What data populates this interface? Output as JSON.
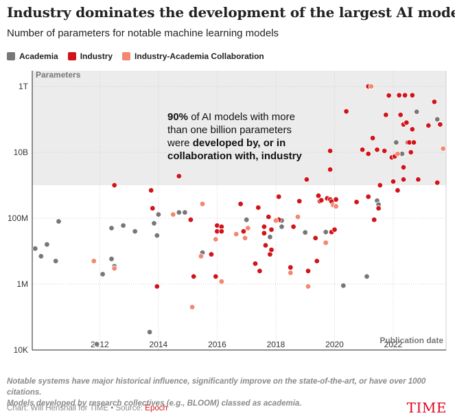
{
  "chart_data": {
    "type": "scatter",
    "title": "Industry dominates the development of the largest AI models",
    "subtitle": "Number of parameters for notable machine learning models",
    "ylabel": "Parameters",
    "xlabel": "Publication date",
    "yscale": "log",
    "ylim": [
      10000,
      3000000000000
    ],
    "xlim": [
      2009.7,
      2023.8
    ],
    "x_ticks": [
      2012,
      2014,
      2016,
      2018,
      2020,
      2022
    ],
    "y_ticks": [
      {
        "value": 10000,
        "label": "10K"
      },
      {
        "value": 1000000,
        "label": "1M"
      },
      {
        "value": 100000000,
        "label": "100M"
      },
      {
        "value": 10000000000,
        "label": "10B"
      },
      {
        "value": 1000000000000,
        "label": "1T"
      }
    ],
    "shaded_region": {
      "y_from": 1000000000,
      "y_to": 3000000000000,
      "color": "#ececec"
    },
    "annotation": {
      "line1_bold": "90%",
      "line1_rest": " of AI models with more",
      "line2": "than one billion parameters",
      "line3_normal": "were ",
      "line3_bold": "developed by, or in",
      "line4_bold": "collaboration with, industry"
    },
    "legend": [
      {
        "name": "Academia",
        "color": "#777777"
      },
      {
        "name": "Industry",
        "color": "#d1141a"
      },
      {
        "name": "Industry-Academia Collaboration",
        "color": "#f4876f"
      }
    ],
    "series": [
      {
        "name": "Academia",
        "color": "#777777",
        "points": [
          [
            2009.8,
            12000000
          ],
          [
            2010.0,
            7000000
          ],
          [
            2010.2,
            16000000
          ],
          [
            2010.5,
            5000000
          ],
          [
            2010.6,
            80000000
          ],
          [
            2011.9,
            15000
          ],
          [
            2012.1,
            2000000
          ],
          [
            2012.4,
            5800000
          ],
          [
            2012.4,
            50000000
          ],
          [
            2012.5,
            3500000
          ],
          [
            2012.8,
            60000000
          ],
          [
            2013.2,
            40000000
          ],
          [
            2013.7,
            35000
          ],
          [
            2013.85,
            70000000
          ],
          [
            2013.95,
            30000000
          ],
          [
            2014.0,
            130000000
          ],
          [
            2014.7,
            150000000
          ],
          [
            2014.9,
            150000000
          ],
          [
            2015.5,
            9000000
          ],
          [
            2017.0,
            90000000
          ],
          [
            2017.8,
            27000000
          ],
          [
            2018.2,
            85000000
          ],
          [
            2018.2,
            55000000
          ],
          [
            2019.0,
            37000000
          ],
          [
            2019.7,
            38000000
          ],
          [
            2020.3,
            900000
          ],
          [
            2021.1,
            1700000
          ],
          [
            2021.45,
            340000000
          ],
          [
            2021.5,
            260000000
          ],
          [
            2022.1,
            20000000000
          ],
          [
            2022.3,
            9000000000
          ],
          [
            2022.8,
            170000000000
          ],
          [
            2023.5,
            100000000000
          ]
        ]
      },
      {
        "name": "Industry",
        "color": "#d1141a",
        "points": [
          [
            2012.5,
            1000000000
          ],
          [
            2013.75,
            700000000
          ],
          [
            2013.8,
            200000000
          ],
          [
            2013.95,
            850000
          ],
          [
            2014.7,
            1900000000
          ],
          [
            2015.1,
            90000000
          ],
          [
            2015.2,
            1700000
          ],
          [
            2015.8,
            8000000
          ],
          [
            2015.95,
            1700000
          ],
          [
            2016.0,
            60000000
          ],
          [
            2016.0,
            40000000
          ],
          [
            2016.15,
            55000000
          ],
          [
            2016.15,
            40000000
          ],
          [
            2016.8,
            270000000
          ],
          [
            2016.9,
            40000000
          ],
          [
            2017.3,
            4200000
          ],
          [
            2017.4,
            210000000
          ],
          [
            2017.45,
            2500000
          ],
          [
            2017.6,
            55000000
          ],
          [
            2017.6,
            35000000
          ],
          [
            2017.65,
            15000000
          ],
          [
            2017.75,
            110000000
          ],
          [
            2017.8,
            8000000
          ],
          [
            2017.85,
            45000000
          ],
          [
            2017.85,
            11000000
          ],
          [
            2018.1,
            90000000
          ],
          [
            2018.1,
            450000000
          ],
          [
            2018.5,
            3200000
          ],
          [
            2018.6,
            55000000
          ],
          [
            2018.8,
            330000000
          ],
          [
            2019.05,
            1500000000
          ],
          [
            2019.1,
            2500000
          ],
          [
            2019.35,
            25000000
          ],
          [
            2019.4,
            5000000
          ],
          [
            2019.45,
            480000000
          ],
          [
            2019.5,
            330000000
          ],
          [
            2019.55,
            350000000
          ],
          [
            2019.75,
            400000000
          ],
          [
            2019.85,
            11000000000
          ],
          [
            2019.85,
            3000000000
          ],
          [
            2019.85,
            370000000
          ],
          [
            2019.9,
            320000000
          ],
          [
            2019.9,
            38000000
          ],
          [
            2020.0,
            45000000
          ],
          [
            2020.05,
            370000000
          ],
          [
            2020.4,
            175000000000
          ],
          [
            2020.75,
            310000000
          ],
          [
            2020.95,
            12000000000
          ],
          [
            2021.15,
            1000000000000
          ],
          [
            2021.15,
            450000000
          ],
          [
            2021.15,
            9000000000
          ],
          [
            2021.3,
            27000000000
          ],
          [
            2021.35,
            90000000
          ],
          [
            2021.45,
            12000000000
          ],
          [
            2021.5,
            200000000
          ],
          [
            2021.55,
            1000000000
          ],
          [
            2021.7,
            11000000000
          ],
          [
            2021.75,
            137000000000
          ],
          [
            2021.85,
            530000000000
          ],
          [
            2021.95,
            7000000000
          ],
          [
            2022.0,
            1300000000
          ],
          [
            2022.05,
            7500000000
          ],
          [
            2022.15,
            700000000
          ],
          [
            2022.2,
            540000000000
          ],
          [
            2022.25,
            137000000000
          ],
          [
            2022.35,
            3500000000
          ],
          [
            2022.35,
            1500000000
          ],
          [
            2022.35,
            70000000000
          ],
          [
            2022.4,
            540000000000
          ],
          [
            2022.45,
            80000000000
          ],
          [
            2022.5,
            20000000000
          ],
          [
            2022.55,
            20000000000
          ],
          [
            2022.6,
            10000000000
          ],
          [
            2022.65,
            540000000000
          ],
          [
            2022.65,
            50000000000
          ],
          [
            2022.7,
            20000000000
          ],
          [
            2022.85,
            1500000000
          ],
          [
            2023.2,
            65000000000
          ],
          [
            2023.4,
            340000000000
          ],
          [
            2023.5,
            1200000000
          ],
          [
            2023.6,
            70000000000
          ]
        ]
      },
      {
        "name": "Industry-Academia Collaboration",
        "color": "#f4876f",
        "points": [
          [
            2011.8,
            5000000
          ],
          [
            2012.5,
            3000000
          ],
          [
            2014.5,
            130000000
          ],
          [
            2015.15,
            200000
          ],
          [
            2015.45,
            7000000
          ],
          [
            2015.5,
            270000000
          ],
          [
            2015.95,
            23000000
          ],
          [
            2016.15,
            1200000
          ],
          [
            2016.65,
            33000000
          ],
          [
            2016.95,
            25000000
          ],
          [
            2017.05,
            50000000
          ],
          [
            2018.0,
            85000000
          ],
          [
            2018.5,
            2200000
          ],
          [
            2018.75,
            110000000
          ],
          [
            2019.1,
            850000
          ],
          [
            2019.7,
            18000000
          ],
          [
            2019.95,
            250000000
          ],
          [
            2020.05,
            230000000
          ],
          [
            2021.25,
            1000000000000
          ],
          [
            2022.15,
            9000000000
          ],
          [
            2023.7,
            13000000000
          ]
        ]
      }
    ]
  },
  "notes": {
    "footnote_line1": "Notable systems have major historical influence, significantly improve on the state-of-the-art, or have over 1000 citations.",
    "footnote_line2": "Models developed by research collectives (e.g., BLOOM) classed as academia.",
    "credit_prefix": "Chart: Will Henshall for TIME • Source: ",
    "source_name": "Epoch"
  },
  "brand": "TIME"
}
